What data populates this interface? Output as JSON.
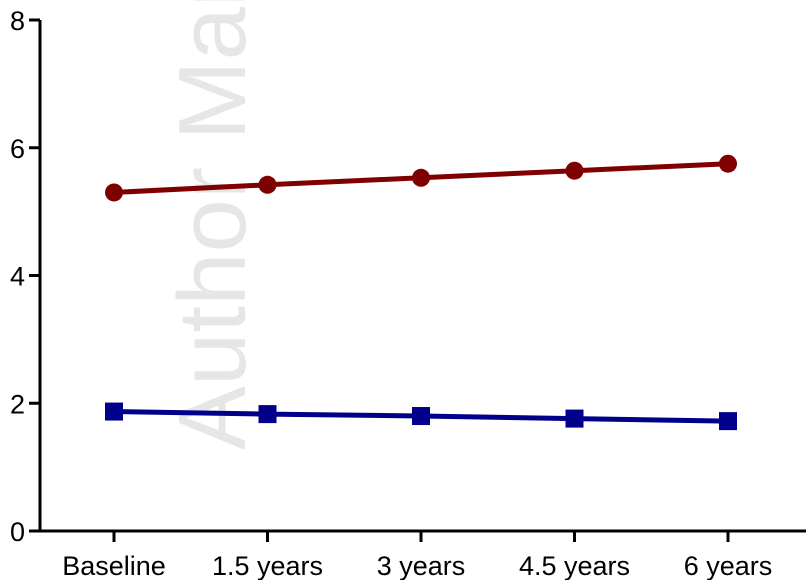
{
  "watermark": "Author Manuscript",
  "chart_data": {
    "type": "line",
    "title": "",
    "xlabel": "",
    "ylabel": "",
    "categories": [
      "Baseline",
      "1.5 years",
      "3 years",
      "4.5 years",
      "6 years"
    ],
    "ylim": [
      0,
      8
    ],
    "yticks": [
      0,
      2,
      4,
      6,
      8
    ],
    "grid": false,
    "legend": "none",
    "series": [
      {
        "color": "#7f0000",
        "marker": "circle",
        "values": [
          5.3,
          5.42,
          5.53,
          5.64,
          5.75
        ]
      },
      {
        "color": "#00008b",
        "marker": "square",
        "values": [
          1.87,
          1.83,
          1.8,
          1.76,
          1.72
        ]
      }
    ]
  }
}
